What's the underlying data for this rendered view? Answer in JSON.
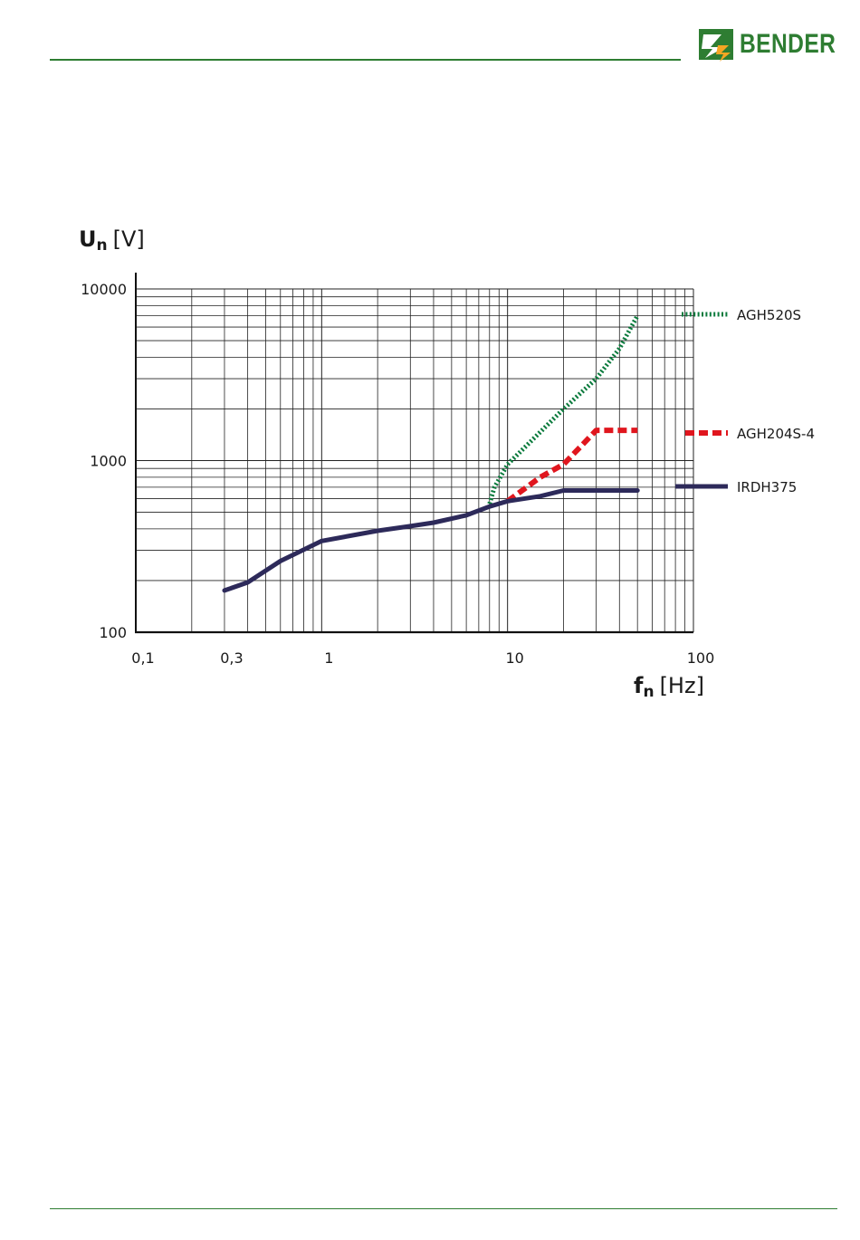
{
  "brand": {
    "name": "BENDER",
    "color_green": "#2e7d32",
    "color_orange": "#f5a623"
  },
  "chart_data": {
    "type": "line",
    "x_scale": "log",
    "y_scale": "log",
    "xlim": [
      0.1,
      100
    ],
    "ylim": [
      100,
      10000
    ],
    "grid": true,
    "legend_position": "right",
    "x_ticks": [
      {
        "value": 0.1,
        "label": "0,1"
      },
      {
        "value": 0.3,
        "label": "0,3"
      },
      {
        "value": 1,
        "label": "1"
      },
      {
        "value": 10,
        "label": "10"
      },
      {
        "value": 100,
        "label": "100"
      }
    ],
    "y_ticks": [
      {
        "value": 100,
        "label": "100"
      },
      {
        "value": 1000,
        "label": "1000"
      },
      {
        "value": 10000,
        "label": "10000"
      }
    ],
    "x_axis_title": {
      "symbol": "f",
      "subscript": "n",
      "unit": "[Hz]"
    },
    "y_axis_title": {
      "symbol": "U",
      "subscript": "n",
      "unit": "[V]"
    },
    "series": [
      {
        "name": "AGH520S",
        "color": "#0a7a3c",
        "style": "dotted",
        "points": [
          [
            8,
            560
          ],
          [
            8.5,
            700
          ],
          [
            10,
            950
          ],
          [
            20,
            2000
          ],
          [
            30,
            3000
          ],
          [
            40,
            4500
          ],
          [
            50,
            7000
          ]
        ]
      },
      {
        "name": "AGH204S-4",
        "color": "#e0161e",
        "style": "dashed",
        "points": [
          [
            10,
            580
          ],
          [
            15,
            800
          ],
          [
            20,
            950
          ],
          [
            30,
            1500
          ],
          [
            50,
            1500
          ]
        ]
      },
      {
        "name": "IRDH375",
        "color": "#2d2a5a",
        "style": "solid",
        "points": [
          [
            0.3,
            175
          ],
          [
            0.4,
            195
          ],
          [
            0.6,
            260
          ],
          [
            1,
            340
          ],
          [
            2,
            390
          ],
          [
            3,
            415
          ],
          [
            4,
            435
          ],
          [
            6,
            480
          ],
          [
            8,
            540
          ],
          [
            10,
            580
          ],
          [
            15,
            620
          ],
          [
            20,
            670
          ],
          [
            50,
            670
          ]
        ]
      }
    ]
  }
}
